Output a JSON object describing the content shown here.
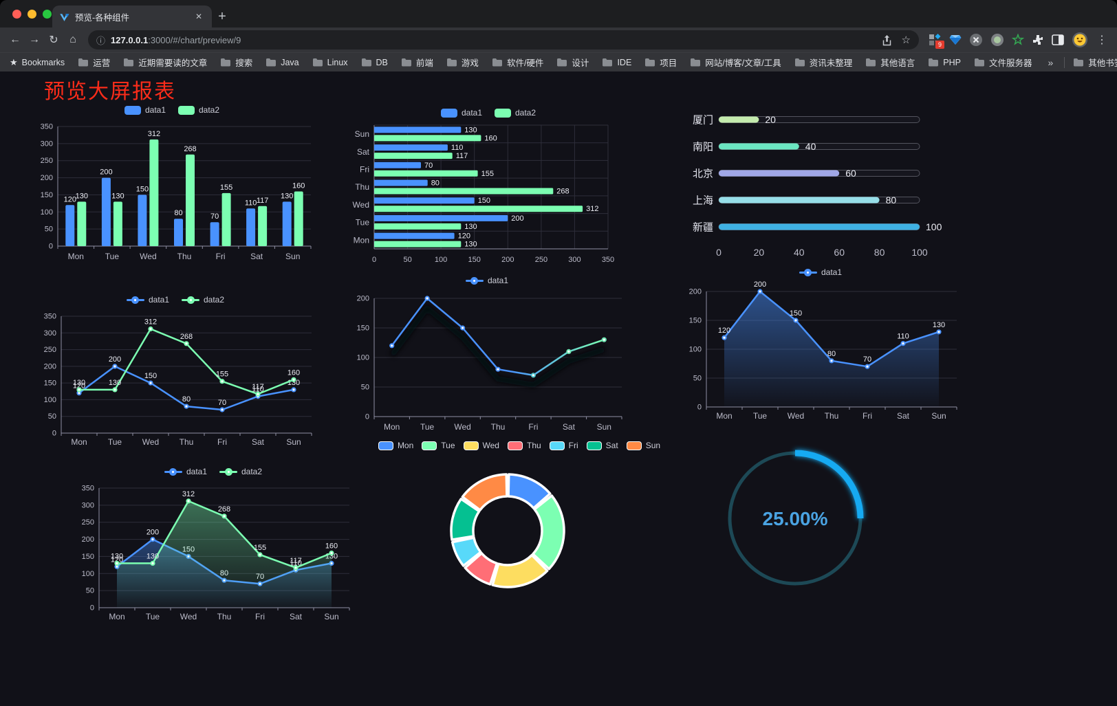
{
  "browser": {
    "tab": {
      "title": "预览-各种组件",
      "close_icon": "✕",
      "new_tab_icon": "+"
    },
    "toolbar": {
      "back_icon": "←",
      "forward_icon": "→",
      "reload_icon": "↻",
      "home_icon": "⌂",
      "url": {
        "info_icon": "ⓘ",
        "host": "127.0.0.1",
        "path": ":3000/#/chart/preview/9"
      },
      "star_icon": "☆",
      "extension_badge": "9",
      "menu_icon": "⋮"
    },
    "bookmarks_bar": {
      "star_icon": "★",
      "label": "Bookmarks",
      "folders": [
        "运营",
        "近期需要读的文章",
        "搜索",
        "Java",
        "Linux",
        "DB",
        "前端",
        "游戏",
        "软件/硬件",
        "设计",
        "IDE",
        "项目",
        "网站/博客/文章/工具",
        "资讯未整理",
        "其他语言",
        "PHP",
        "文件服务器"
      ],
      "overflow_icon": "»",
      "other_label": "其他书签"
    }
  },
  "page": {
    "title": "预览大屏报表",
    "title_color": "#fa2c1a",
    "background": "#111118"
  },
  "chart_data": [
    {
      "id": "bar-vertical",
      "type": "bar",
      "categories": [
        "Mon",
        "Tue",
        "Wed",
        "Thu",
        "Fri",
        "Sat",
        "Sun"
      ],
      "series": [
        {
          "name": "data1",
          "color": "#4992ff",
          "values": [
            120,
            200,
            150,
            80,
            70,
            110,
            130
          ]
        },
        {
          "name": "data2",
          "color": "#7cffb2",
          "values": [
            130,
            130,
            312,
            268,
            155,
            117,
            160
          ]
        }
      ],
      "ylim": [
        0,
        350
      ],
      "ytick_step": 50,
      "legend_position": "top",
      "grid": true
    },
    {
      "id": "bar-horizontal",
      "type": "bar",
      "orientation": "horizontal",
      "categories": [
        "Mon",
        "Tue",
        "Wed",
        "Thu",
        "Fri",
        "Sat",
        "Sun"
      ],
      "category_order": "bottom-to-top",
      "series": [
        {
          "name": "data1",
          "color": "#4992ff",
          "values": [
            120,
            200,
            150,
            80,
            70,
            110,
            130
          ]
        },
        {
          "name": "data2",
          "color": "#7cffb2",
          "values": [
            130,
            130,
            312,
            268,
            155,
            117,
            160
          ]
        }
      ],
      "xlim": [
        0,
        350
      ],
      "xtick_step": 50,
      "legend_position": "top",
      "grid": true
    },
    {
      "id": "capsule-progress",
      "type": "bar",
      "subtype": "capsule-progress",
      "rows": [
        {
          "label": "厦门",
          "value": 20,
          "color": "#c4ebad"
        },
        {
          "label": "南阳",
          "value": 40,
          "color": "#6be6c1"
        },
        {
          "label": "北京",
          "value": 60,
          "color": "#a0a7e6"
        },
        {
          "label": "上海",
          "value": 80,
          "color": "#96dee8"
        },
        {
          "label": "新疆",
          "value": 100,
          "color": "#3fb1e3"
        }
      ],
      "xlim": [
        0,
        100
      ],
      "xticks": [
        0,
        20,
        40,
        60,
        80,
        100
      ]
    },
    {
      "id": "line-two-series",
      "type": "line",
      "categories": [
        "Mon",
        "Tue",
        "Wed",
        "Thu",
        "Fri",
        "Sat",
        "Sun"
      ],
      "series": [
        {
          "name": "data1",
          "color": "#4992ff",
          "values": [
            120,
            200,
            150,
            80,
            70,
            110,
            130
          ]
        },
        {
          "name": "data2",
          "color": "#7cffb2",
          "values": [
            130,
            130,
            312,
            268,
            155,
            117,
            160
          ]
        }
      ],
      "ylim": [
        0,
        350
      ],
      "ytick_step": 50,
      "show_value_labels": true,
      "legend_position": "top"
    },
    {
      "id": "line-gradient",
      "type": "line",
      "categories": [
        "Mon",
        "Tue",
        "Wed",
        "Thu",
        "Fri",
        "Sat",
        "Sun"
      ],
      "series": [
        {
          "name": "data1",
          "gradient": [
            "#4992ff",
            "#7cffb2"
          ],
          "values": [
            120,
            200,
            150,
            80,
            70,
            110,
            130
          ]
        }
      ],
      "ylim": [
        0,
        200
      ],
      "ytick_step": 50,
      "show_value_labels": false,
      "shadow": true,
      "legend_position": "top"
    },
    {
      "id": "area-single",
      "type": "area",
      "categories": [
        "Mon",
        "Tue",
        "Wed",
        "Thu",
        "Fri",
        "Sat",
        "Sun"
      ],
      "series": [
        {
          "name": "data1",
          "color": "#4992ff",
          "values": [
            120,
            200,
            150,
            80,
            70,
            110,
            130
          ],
          "area": true
        }
      ],
      "ylim": [
        0,
        200
      ],
      "ytick_step": 50,
      "show_value_labels": true,
      "legend_position": "top"
    },
    {
      "id": "area-two-series",
      "type": "area",
      "categories": [
        "Mon",
        "Tue",
        "Wed",
        "Thu",
        "Fri",
        "Sat",
        "Sun"
      ],
      "series": [
        {
          "name": "data1",
          "color": "#4992ff",
          "values": [
            120,
            200,
            150,
            80,
            70,
            110,
            130
          ],
          "area": true
        },
        {
          "name": "data2",
          "color": "#7cffb2",
          "values": [
            130,
            130,
            312,
            268,
            155,
            117,
            160
          ],
          "area": true
        }
      ],
      "ylim": [
        0,
        350
      ],
      "ytick_step": 50,
      "show_value_labels": true,
      "legend_position": "top"
    },
    {
      "id": "donut",
      "type": "pie",
      "inner_radius_ratio": 0.6,
      "border_color": "#ffffff",
      "categories": [
        "Mon",
        "Tue",
        "Wed",
        "Thu",
        "Fri",
        "Sat",
        "Sun"
      ],
      "values": [
        120,
        200,
        150,
        80,
        70,
        110,
        130
      ],
      "colors": [
        "#4992ff",
        "#7cffb2",
        "#fddd60",
        "#ff6e76",
        "#58d9f9",
        "#05c091",
        "#ff8a45"
      ],
      "legend_position": "top"
    },
    {
      "id": "gauge",
      "type": "gauge",
      "percent": 25,
      "value_label": "25.00%",
      "color": "#19aaf2",
      "track_color": "#1d4956"
    }
  ]
}
